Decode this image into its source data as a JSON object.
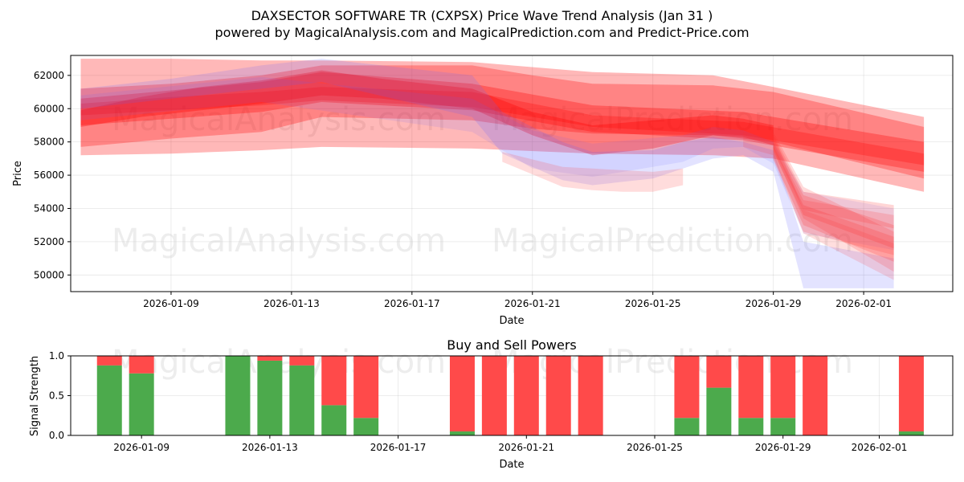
{
  "title_line1": "DAXSECTOR SOFTWARE TR (CXPSX) Price Wave Trend Analysis (Jan 31 )",
  "title_line2": "powered by MagicalAnalysis.com and MagicalPrediction.com and Predict-Price.com",
  "watermarks": [
    "MagicalAnalysis.com",
    "MagicalPrediction.com"
  ],
  "chart_data": [
    {
      "type": "area",
      "title": "Price Wave Trend Analysis",
      "xlabel": "Date",
      "ylabel": "Price",
      "x_range": [
        "2026-01-05T16:00",
        "2026-02-03T23:00"
      ],
      "ylim": [
        49000,
        63200
      ],
      "xticks": [
        "2026-01-09",
        "2026-01-13",
        "2026-01-17",
        "2026-01-21",
        "2026-01-25",
        "2026-01-29",
        "2026-02-01"
      ],
      "yticks": [
        50000,
        52000,
        54000,
        56000,
        58000,
        60000,
        62000
      ],
      "grid": true,
      "bands": [
        {
          "color": "#ff0000",
          "alpha": 0.28,
          "x": [
            "2026-01-06",
            "2026-01-09",
            "2026-01-12",
            "2026-01-14",
            "2026-01-19",
            "2026-01-23",
            "2026-01-27",
            "2026-01-29",
            "2026-02-03"
          ],
          "upper": [
            63000,
            63000,
            62900,
            62900,
            62800,
            62200,
            62000,
            61300,
            59500
          ],
          "lower": [
            57200,
            57300,
            57500,
            57700,
            57600,
            57300,
            57200,
            57000,
            55000
          ]
        },
        {
          "color": "#ff0000",
          "alpha": 0.28,
          "x": [
            "2026-01-06",
            "2026-01-09",
            "2026-01-12",
            "2026-01-14",
            "2026-01-19",
            "2026-01-21",
            "2026-01-23",
            "2026-01-27",
            "2026-01-29",
            "2026-02-03"
          ],
          "upper": [
            61200,
            61500,
            62000,
            62600,
            62600,
            62000,
            61500,
            61400,
            61000,
            58900
          ],
          "lower": [
            57700,
            58200,
            58600,
            59500,
            59300,
            58800,
            58500,
            58400,
            58000,
            55800
          ]
        },
        {
          "color": "#ff0000",
          "alpha": 0.3,
          "x": [
            "2026-01-06",
            "2026-01-09",
            "2026-01-12",
            "2026-01-14",
            "2026-01-19",
            "2026-01-23",
            "2026-01-28",
            "2026-02-03"
          ],
          "upper": [
            60600,
            61100,
            61600,
            62200,
            61500,
            60200,
            59800,
            58000
          ],
          "lower": [
            59000,
            59400,
            59800,
            60400,
            59900,
            58600,
            58100,
            56200
          ]
        },
        {
          "color": "#ff0000",
          "alpha": 0.26,
          "x": [
            "2026-01-06",
            "2026-01-09",
            "2026-01-12",
            "2026-01-14",
            "2026-01-19",
            "2026-01-23",
            "2026-01-28",
            "2026-02-03"
          ],
          "upper": [
            60300,
            60700,
            61000,
            61300,
            61000,
            59600,
            59200,
            57300
          ],
          "lower": [
            59600,
            59900,
            60200,
            60500,
            60100,
            58900,
            58400,
            56600
          ]
        },
        {
          "color": "#ff0000",
          "alpha": 0.32,
          "x": [
            "2026-01-06",
            "2026-01-08",
            "2026-01-10",
            "2026-01-12",
            "2026-01-14",
            "2026-01-16",
            "2026-01-19",
            "2026-01-21",
            "2026-01-23",
            "2026-01-25",
            "2026-01-27",
            "2026-01-28",
            "2026-01-29"
          ],
          "upper": [
            59900,
            60700,
            61300,
            61700,
            62300,
            61800,
            61200,
            59800,
            59000,
            59300,
            59600,
            59400,
            59000
          ],
          "lower": [
            58900,
            59500,
            59900,
            60300,
            60800,
            60600,
            60000,
            58400,
            57200,
            57600,
            58400,
            58300,
            57800
          ]
        },
        {
          "color": "#6666ff",
          "alpha": 0.18,
          "x": [
            "2026-01-06",
            "2026-01-09",
            "2026-01-12",
            "2026-01-14",
            "2026-01-19",
            "2026-01-20",
            "2026-01-22",
            "2026-01-23",
            "2026-01-25",
            "2026-01-26",
            "2026-01-27",
            "2026-01-28",
            "2026-01-29",
            "2026-01-30",
            "2026-02-02"
          ],
          "upper": [
            61200,
            61800,
            62600,
            63000,
            62000,
            59800,
            58000,
            57400,
            57500,
            58000,
            58300,
            58000,
            57500,
            52000,
            51000
          ],
          "lower": [
            60000,
            60600,
            61200,
            61600,
            59500,
            57300,
            55700,
            55400,
            55800,
            56400,
            57000,
            57200,
            56200,
            49200,
            49200
          ]
        },
        {
          "color": "#6666ff",
          "alpha": 0.12,
          "x": [
            "2026-01-06",
            "2026-01-12",
            "2026-01-19",
            "2026-01-21",
            "2026-01-23",
            "2026-01-26",
            "2026-01-27",
            "2026-01-28",
            "2026-01-29",
            "2026-01-30",
            "2026-02-02"
          ],
          "upper": [
            60800,
            61900,
            60600,
            58700,
            57900,
            58400,
            58900,
            58700,
            58000,
            55000,
            54000
          ],
          "lower": [
            59300,
            60400,
            58600,
            56400,
            55900,
            56800,
            57600,
            57700,
            56700,
            52500,
            51500
          ]
        },
        {
          "color": "#ff5050",
          "alpha": 0.2,
          "x": [
            "2026-01-20",
            "2026-01-22",
            "2026-01-23",
            "2026-01-24",
            "2026-01-25",
            "2026-01-26"
          ],
          "upper": [
            57400,
            56500,
            56400,
            56300,
            56200,
            56400
          ],
          "lower": [
            56800,
            55300,
            55100,
            55000,
            55000,
            55400
          ]
        },
        {
          "color": "#ff3030",
          "alpha": 0.22,
          "x": [
            "2026-01-29",
            "2026-01-30",
            "2026-02-02"
          ],
          "upper": [
            58200,
            54800,
            53000
          ],
          "lower": [
            57400,
            53600,
            51600
          ]
        },
        {
          "color": "#ff3030",
          "alpha": 0.22,
          "x": [
            "2026-01-29",
            "2026-01-30",
            "2026-02-02"
          ],
          "upper": [
            57800,
            54200,
            52300
          ],
          "lower": [
            57000,
            53000,
            50800
          ]
        },
        {
          "color": "#ff3030",
          "alpha": 0.2,
          "x": [
            "2026-01-29",
            "2026-01-30",
            "2026-02-02"
          ],
          "upper": [
            58400,
            55000,
            54200
          ],
          "lower": [
            57600,
            53900,
            52800
          ]
        },
        {
          "color": "#ff3030",
          "alpha": 0.18,
          "x": [
            "2026-01-29",
            "2026-01-30",
            "2026-02-02"
          ],
          "upper": [
            58000,
            54500,
            53600
          ],
          "lower": [
            56900,
            52600,
            51200
          ]
        },
        {
          "color": "#ff3030",
          "alpha": 0.18,
          "x": [
            "2026-01-29",
            "2026-01-30",
            "2026-02-02"
          ],
          "upper": [
            58600,
            55300,
            52600
          ],
          "lower": [
            57500,
            53400,
            50200
          ]
        },
        {
          "color": "#ff3030",
          "alpha": 0.16,
          "x": [
            "2026-01-28",
            "2026-01-29",
            "2026-01-30",
            "2026-02-02"
          ],
          "upper": [
            58600,
            58500,
            53900,
            51900
          ],
          "lower": [
            57700,
            57200,
            52500,
            49700
          ]
        }
      ]
    },
    {
      "type": "bar",
      "title": "Buy and Sell Powers",
      "xlabel": "Date",
      "ylabel": "Signal Strength",
      "ylim": [
        0,
        1.0
      ],
      "yticks": [
        "0.0",
        "0.5",
        "1.0"
      ],
      "xticks": [
        "2026-01-09",
        "2026-01-13",
        "2026-01-17",
        "2026-01-21",
        "2026-01-25",
        "2026-01-29",
        "2026-02-01"
      ],
      "series": [
        {
          "name": "Buy",
          "color": "#4caa4c"
        },
        {
          "name": "Sell",
          "color": "#ff4a4a"
        }
      ],
      "bars": [
        {
          "date": "2026-01-08",
          "buy": 0.88
        },
        {
          "date": "2026-01-09",
          "buy": 0.78
        },
        {
          "date": "2026-01-12",
          "buy": 1.0
        },
        {
          "date": "2026-01-13",
          "buy": 0.94
        },
        {
          "date": "2026-01-14",
          "buy": 0.88
        },
        {
          "date": "2026-01-15",
          "buy": 0.38
        },
        {
          "date": "2026-01-16",
          "buy": 0.22
        },
        {
          "date": "2026-01-19",
          "buy": 0.05
        },
        {
          "date": "2026-01-20",
          "buy": 0.0
        },
        {
          "date": "2026-01-21",
          "buy": 0.0
        },
        {
          "date": "2026-01-22",
          "buy": 0.0
        },
        {
          "date": "2026-01-23",
          "buy": 0.0
        },
        {
          "date": "2026-01-26",
          "buy": 0.22
        },
        {
          "date": "2026-01-27",
          "buy": 0.6
        },
        {
          "date": "2026-01-28",
          "buy": 0.22
        },
        {
          "date": "2026-01-29",
          "buy": 0.22
        },
        {
          "date": "2026-01-30",
          "buy": 0.0
        },
        {
          "date": "2026-02-02",
          "buy": 0.05
        }
      ]
    }
  ]
}
